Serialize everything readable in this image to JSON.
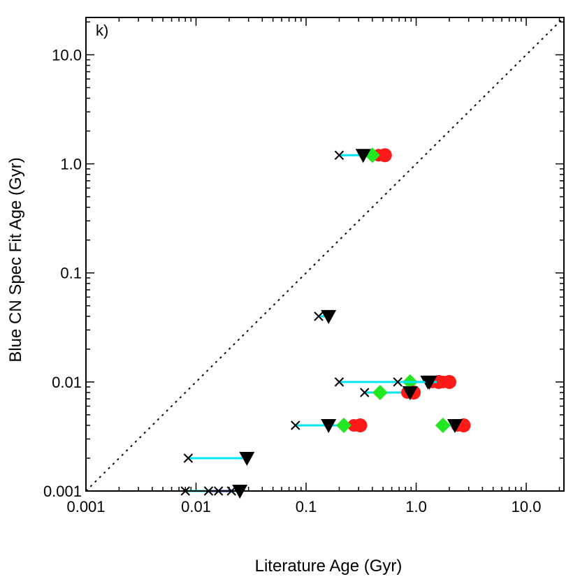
{
  "chart_data": {
    "type": "scatter",
    "scale": "log-log",
    "panel_label": "k)",
    "xlabel": "Literature Age (Gyr)",
    "ylabel": "Blue CN Spec Fit Age (Gyr)",
    "xlim": [
      0.001,
      22
    ],
    "ylim": [
      0.001,
      22
    ],
    "x_ticks": [
      {
        "value": 0.001,
        "label": "0.001"
      },
      {
        "value": 0.01,
        "label": "0.01"
      },
      {
        "value": 0.1,
        "label": "0.1"
      },
      {
        "value": 1.0,
        "label": "1.0"
      },
      {
        "value": 10.0,
        "label": "10.0"
      }
    ],
    "y_ticks": [
      {
        "value": 0.001,
        "label": "0.001"
      },
      {
        "value": 0.01,
        "label": "0.01"
      },
      {
        "value": 0.1,
        "label": "0.1"
      },
      {
        "value": 1.0,
        "label": "1.0"
      },
      {
        "value": 10.0,
        "label": "10.0"
      }
    ],
    "one_to_one_line": true,
    "colors": {
      "connector": "#00e5f0",
      "blue_connector": "#2040ff",
      "red": "#ff1a1a",
      "green": "#22e822",
      "black": "#000000"
    },
    "objects": [
      {
        "y": 1.2,
        "cross": 0.2,
        "triangle": 0.33,
        "green": 0.4,
        "red": 0.52
      },
      {
        "y": 0.04,
        "cross": 0.13,
        "triangle": 0.16,
        "green": null,
        "red": null
      },
      {
        "y": 0.01,
        "cross": 0.2,
        "triangle": 1.28,
        "green": 0.88,
        "red": 1.6
      },
      {
        "y": 0.01,
        "cross": 0.68,
        "triangle": 1.32,
        "green": null,
        "red": 2.0
      },
      {
        "y": 0.008,
        "cross": 0.34,
        "triangle": 0.88,
        "green": 0.47,
        "red": 0.95
      },
      {
        "y": 0.004,
        "cross": 0.08,
        "triangle": 0.16,
        "green": 0.22,
        "red": 0.31
      },
      {
        "y": 0.004,
        "cross": null,
        "triangle": 2.25,
        "green": 1.75,
        "red": 2.7
      },
      {
        "y": 0.002,
        "cross": 0.0085,
        "triangle": 0.029,
        "green": null,
        "red": null
      },
      {
        "y": 0.001,
        "cross": 0.008,
        "triangle": 0.025,
        "green": null,
        "red": null,
        "blue_crosses": [
          0.013,
          0.016,
          0.021
        ]
      }
    ]
  }
}
